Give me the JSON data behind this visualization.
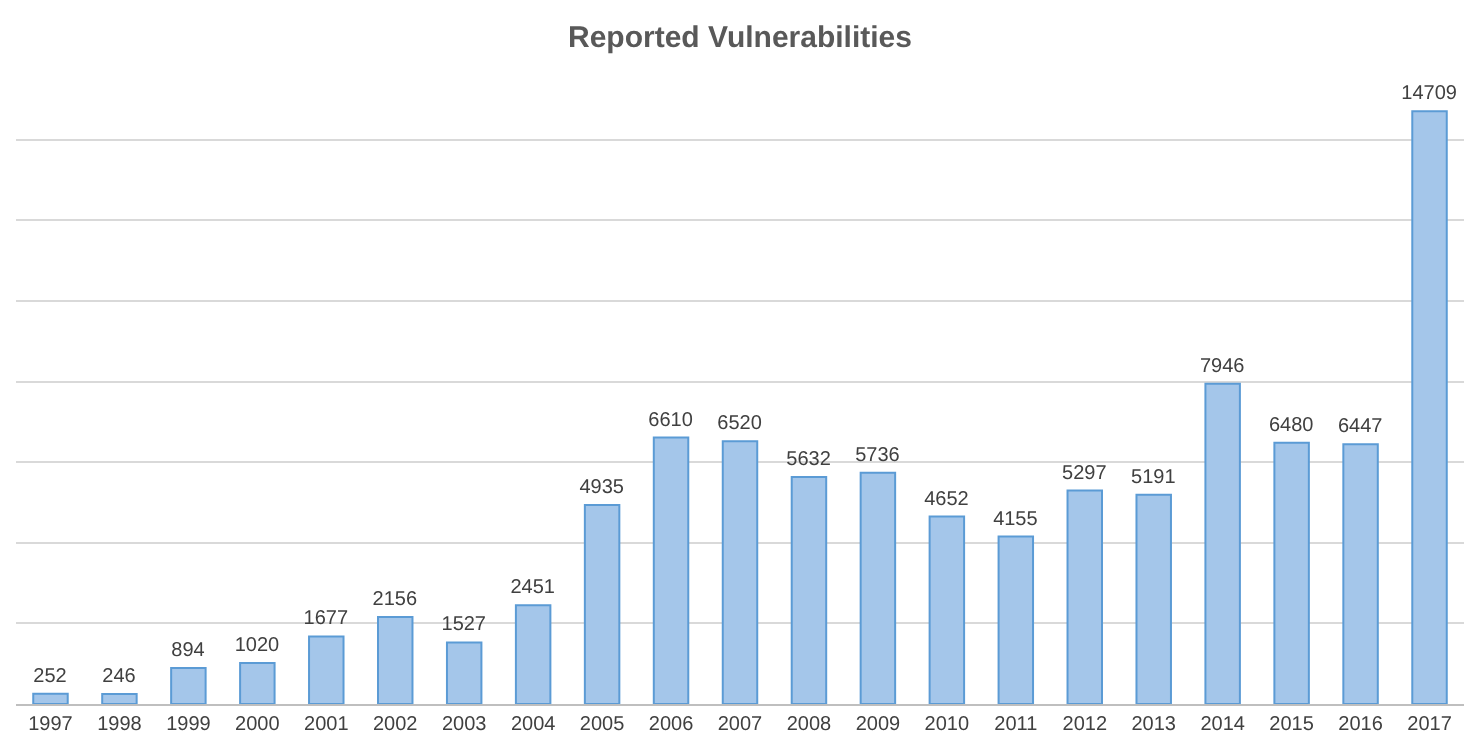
{
  "chart_data": {
    "type": "bar",
    "title": "Reported Vulnerabilities",
    "categories": [
      "1997",
      "1998",
      "1999",
      "2000",
      "2001",
      "2002",
      "2003",
      "2004",
      "2005",
      "2006",
      "2007",
      "2008",
      "2009",
      "2010",
      "2011",
      "2012",
      "2013",
      "2014",
      "2015",
      "2016",
      "2017"
    ],
    "values": [
      252,
      246,
      894,
      1020,
      1677,
      2156,
      1527,
      2451,
      4935,
      6610,
      6520,
      5632,
      5736,
      4652,
      4155,
      5297,
      5191,
      7946,
      6480,
      6447,
      14709
    ],
    "color": "#a4c6ea",
    "tick_labels": "x",
    "grid": "y",
    "data_labels": true
  }
}
